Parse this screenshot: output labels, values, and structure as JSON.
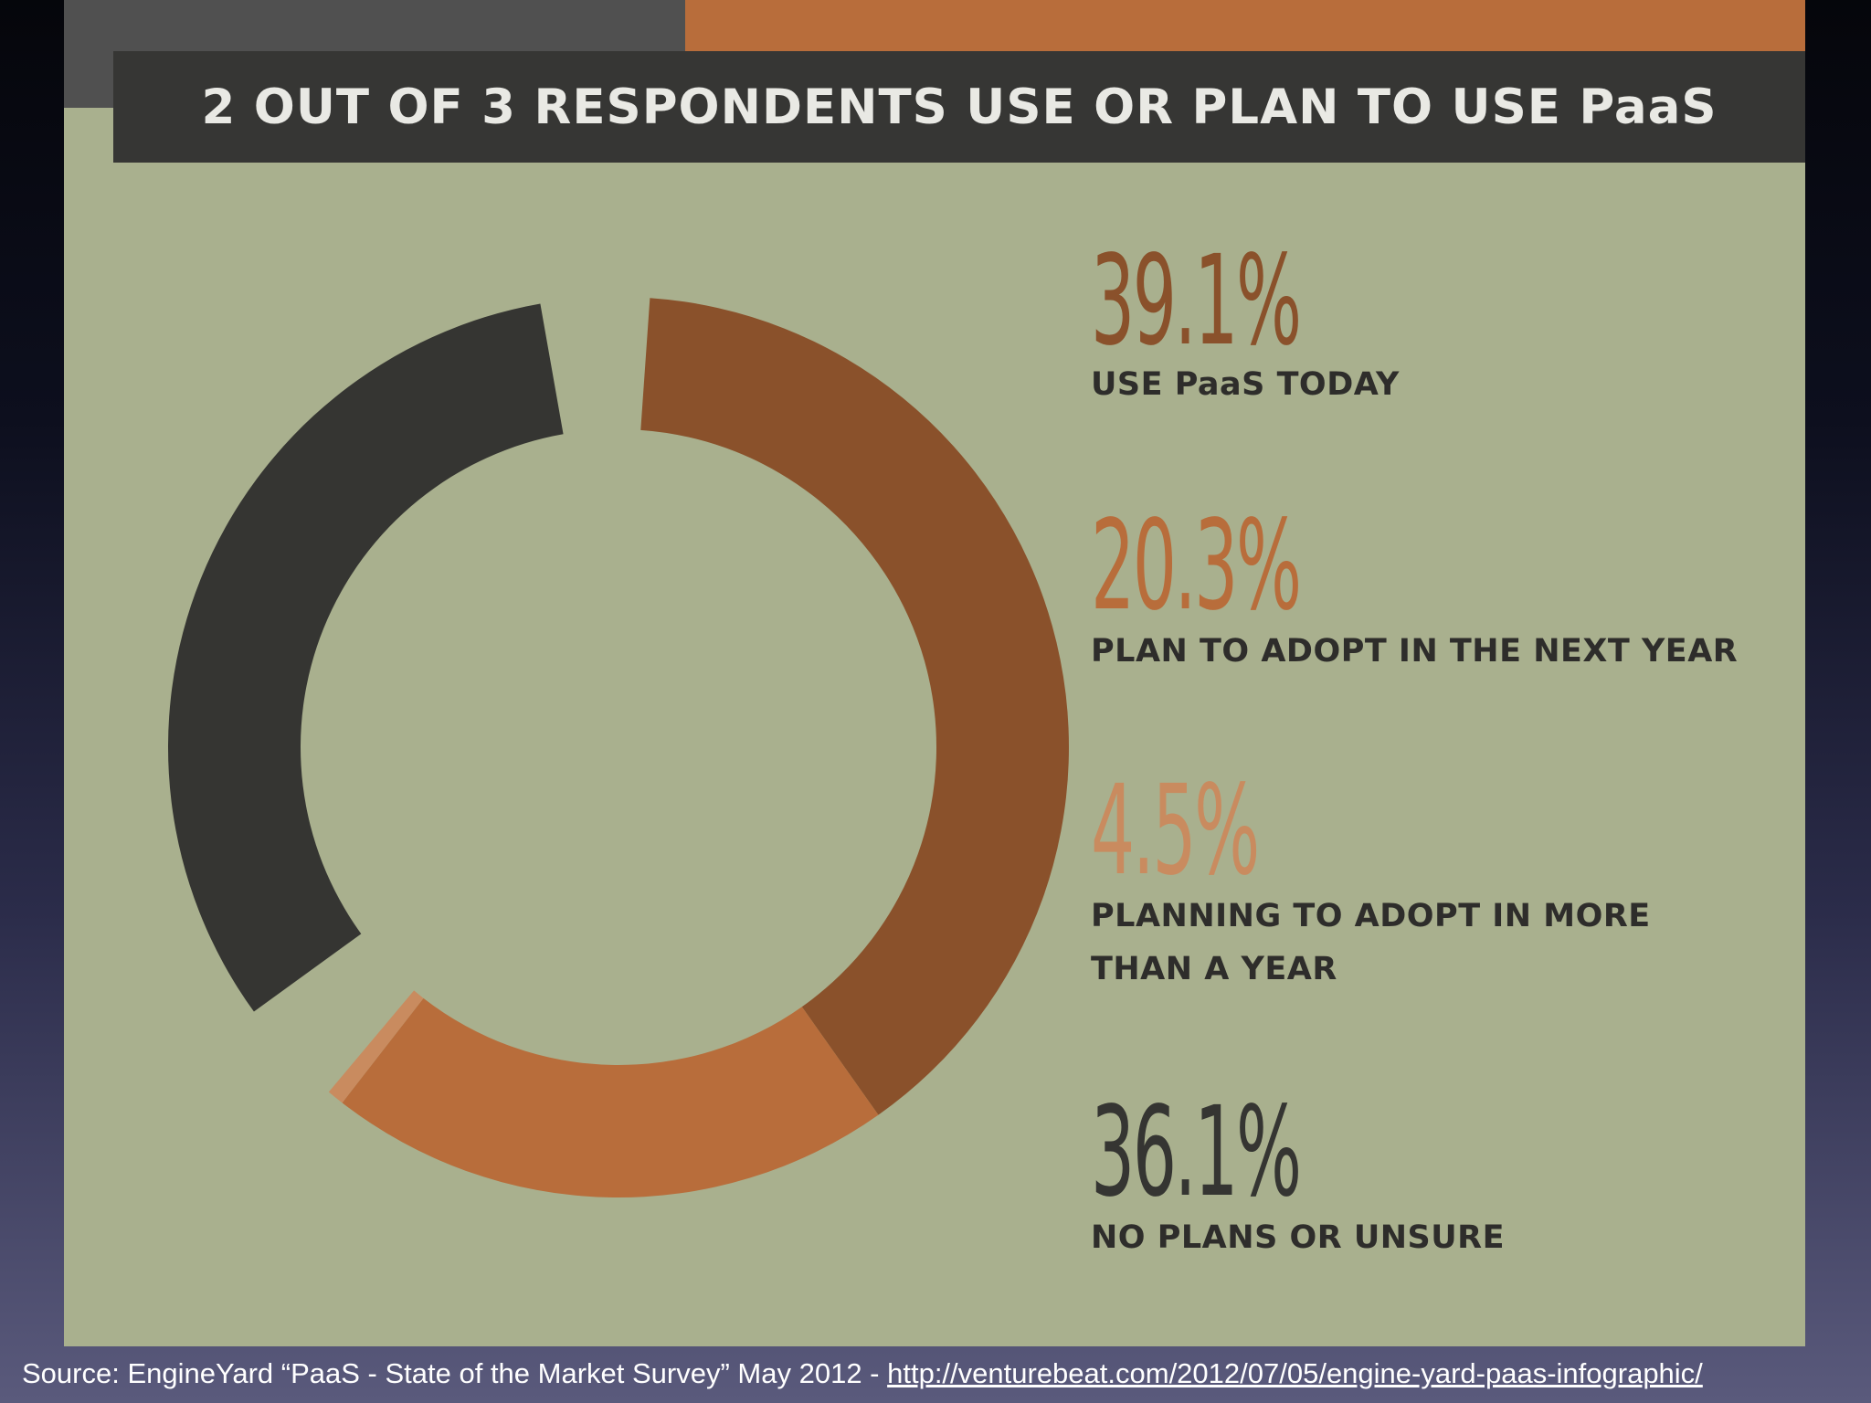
{
  "title": "2 OUT OF 3 RESPONDENTS USE OR PLAN TO USE PaaS",
  "chart_data": {
    "type": "pie",
    "title": "2 OUT OF 3 RESPONDENTS USE OR PLAN TO USE PaaS",
    "donut": true,
    "slices": [
      {
        "value_text": "39.1%",
        "value": 39.1,
        "label": "USE PaaS TODAY",
        "color": "#8a512b"
      },
      {
        "value_text": "20.3%",
        "value": 20.3,
        "label": "PLAN TO ADOPT IN THE NEXT YEAR",
        "color": "#b86d3b"
      },
      {
        "value_text": "4.5%",
        "value": 4.5,
        "label": "PLANNING TO ADOPT IN MORE THAN A YEAR",
        "color": "#c98b5f"
      },
      {
        "value_text": "36.1%",
        "value": 36.1,
        "label": "NO PLANS OR UNSURE",
        "color": "#353532"
      }
    ]
  },
  "source": {
    "text": "Source: EngineYard “PaaS - State of the Market Survey” May 2012 - ",
    "link": "http://venturebeat.com/2012/07/05/engine-yard-paas-infographic/"
  }
}
